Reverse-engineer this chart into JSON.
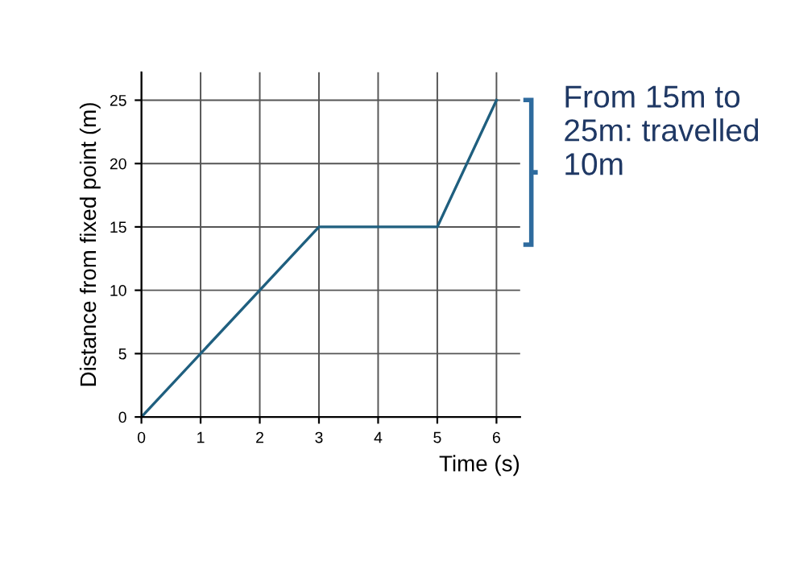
{
  "chart_data": {
    "type": "line",
    "xlabel": "Time (s)",
    "ylabel": "Distance from fixed point (m)",
    "x": [
      0,
      3,
      5,
      6
    ],
    "series": [
      {
        "color": "#1f5f7f",
        "values": [
          0,
          15,
          15,
          25
        ]
      }
    ],
    "xlim": [
      0,
      6.4
    ],
    "ylim": [
      0,
      27.2
    ],
    "xticks": [
      0,
      1,
      2,
      3,
      4,
      5,
      6
    ],
    "yticks": [
      0,
      5,
      10,
      15,
      20,
      25
    ],
    "grid": true,
    "marker": "none",
    "line_style": "solid",
    "legend": false,
    "annotations": [
      "From 15m to 25m: travelled 10m"
    ]
  }
}
